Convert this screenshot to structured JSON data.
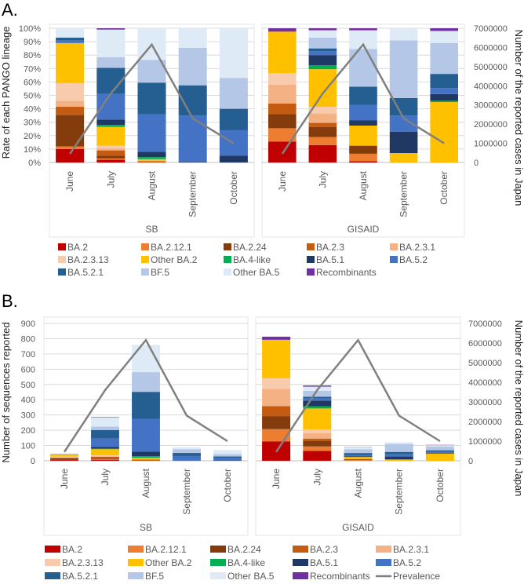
{
  "chart_data": [
    {
      "panel_label": "A.",
      "type": "bar",
      "stacked": "percent",
      "ylabel": "Rate of each PANGO lineage",
      "y2label": "Number of the reported cases in Japan",
      "ylim": [
        0,
        100
      ],
      "y2lim": [
        0,
        7000000
      ],
      "yticks": [
        "0%",
        "10%",
        "20%",
        "30%",
        "40%",
        "50%",
        "60%",
        "70%",
        "80%",
        "90%",
        "100%"
      ],
      "y2ticks": [
        "0",
        "1000000",
        "2000000",
        "3000000",
        "4000000",
        "5000000",
        "6000000",
        "7000000"
      ],
      "groups": [
        {
          "name": "SB",
          "categories": [
            "June",
            "July",
            "August",
            "September",
            "October"
          ],
          "percent": [
            [
              10,
              2,
              23.5,
              6,
              4.5,
              13,
              30,
              0,
              0,
              2,
              2,
              0,
              7,
              0
            ],
            [
              2,
              1,
              2,
              4,
              1.5,
              2,
              14,
              1.5,
              4,
              19,
              19.5,
              8,
              20.5,
              1
            ],
            [
              0,
              0,
              0,
              1,
              0.5,
              0,
              1,
              1.5,
              4,
              28,
              23.5,
              17,
              23.5,
              0
            ],
            [
              0,
              0,
              0,
              0,
              0,
              0,
              0,
              0,
              0.5,
              34.5,
              22.5,
              28,
              14.5,
              0
            ],
            [
              0,
              0,
              0,
              0,
              0,
              0,
              0,
              0,
              5,
              19,
              16,
              23,
              37,
              0
            ]
          ],
          "prevalence": [
            450000,
            3600000,
            6150000,
            2300000,
            1000000
          ]
        },
        {
          "name": "GISAID",
          "categories": [
            "June",
            "July",
            "August",
            "September",
            "October"
          ],
          "percent": [
            [
              15.5,
              10,
              10.5,
              8,
              14,
              8.5,
              31,
              0,
              0,
              0,
              0,
              0,
              0,
              2.5
            ],
            [
              13,
              6,
              7.5,
              3,
              7,
              5,
              28,
              3,
              7.5,
              3,
              2,
              8,
              5.5,
              1.5
            ],
            [
              1,
              5.5,
              6,
              0,
              0,
              0,
              15,
              0,
              4,
              11.5,
              13.5,
              28,
              14,
              1.5
            ],
            [
              0,
              0,
              0,
              0,
              0,
              0,
              7,
              0,
              16,
              12,
              13,
              43,
              9,
              0
            ],
            [
              0,
              0,
              0,
              0,
              0,
              0,
              45,
              1,
              5,
              4.5,
              10.5,
              23,
              9,
              2
            ]
          ],
          "prevalence": [
            450000,
            3600000,
            6150000,
            2300000,
            1000000
          ]
        }
      ]
    },
    {
      "panel_label": "B.",
      "type": "bar",
      "stacked": "count",
      "note_series": "per-lineage counts = totals x panel A composition",
      "ylabel": "Number of sequences reported",
      "y2label": "Number of the reported cases in Japan",
      "ylim": [
        0,
        900
      ],
      "y2lim": [
        0,
        7000000
      ],
      "yticks": [
        "0",
        "100",
        "200",
        "300",
        "400",
        "500",
        "600",
        "700",
        "800",
        "900"
      ],
      "y2ticks": [
        "0",
        "1000000",
        "2000000",
        "3000000",
        "4000000",
        "5000000",
        "6000000",
        "7000000"
      ],
      "groups": [
        {
          "name": "SB",
          "categories": [
            "June",
            "July",
            "August",
            "September",
            "October"
          ],
          "totals": [
            48,
            286,
            759,
            89,
            70
          ],
          "prevalence": [
            450000,
            3600000,
            6150000,
            2300000,
            1000000
          ]
        },
        {
          "name": "GISAID",
          "categories": [
            "June",
            "July",
            "August",
            "September",
            "October"
          ],
          "totals": [
            813,
            493,
            90,
            121,
            104
          ],
          "prevalence": [
            450000,
            3600000,
            6150000,
            2300000,
            1000000
          ]
        }
      ]
    }
  ],
  "lineages": [
    {
      "name": "BA.2",
      "color": "#c00000"
    },
    {
      "name": "BA.2.12.1",
      "color": "#ed7d31"
    },
    {
      "name": "BA.2.24",
      "color": "#843c0c"
    },
    {
      "name": "BA.2.3",
      "color": "#c55a11"
    },
    {
      "name": "BA.2.3.1",
      "color": "#f4b183"
    },
    {
      "name": "BA.2.3.13",
      "color": "#f8cbad"
    },
    {
      "name": "Other BA.2",
      "color": "#ffc000"
    },
    {
      "name": "BA.4-like",
      "color": "#00b050"
    },
    {
      "name": "BA.5.1",
      "color": "#1f3864"
    },
    {
      "name": "BA.5.2",
      "color": "#4472c4"
    },
    {
      "name": "BA.5.2.1",
      "color": "#255e91"
    },
    {
      "name": "BF.5",
      "color": "#b4c7e7"
    },
    {
      "name": "Other BA.5",
      "color": "#deebf7"
    },
    {
      "name": "Recombinants",
      "color": "#7030a0"
    }
  ],
  "prevalence_legend": {
    "name": "Prevalence",
    "color": "#808080"
  }
}
